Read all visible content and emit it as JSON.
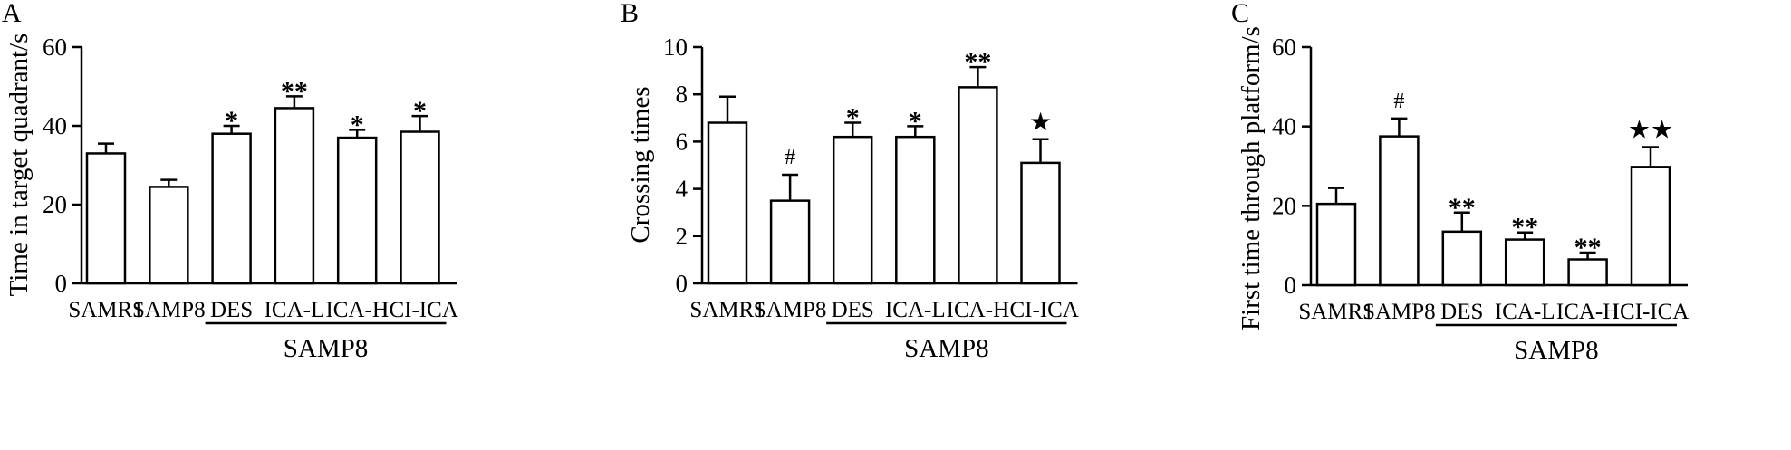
{
  "chart_data": [
    {
      "panel_label": "A",
      "type": "bar",
      "ylabel": "Time in target quadrant/s",
      "ylim": [
        0,
        60
      ],
      "yticks": [
        0,
        20,
        40,
        60
      ],
      "categories": [
        "SAMR1",
        "SAMP8",
        "DES",
        "ICA-L",
        "ICA-H",
        "ICI-ICA"
      ],
      "values": [
        33,
        24.5,
        38,
        44.5,
        37,
        38.5
      ],
      "errors": [
        2.5,
        1.8,
        2,
        3,
        2,
        4
      ],
      "marks": [
        "",
        "",
        "*",
        "**",
        "*",
        "*"
      ],
      "group_label": "SAMP8",
      "group_start": 2,
      "group_end": 5
    },
    {
      "panel_label": "B",
      "type": "bar",
      "ylabel": "Crossing times",
      "ylim": [
        0,
        10
      ],
      "yticks": [
        0,
        2,
        4,
        6,
        8,
        10
      ],
      "categories": [
        "SAMR1",
        "SAMP8",
        "DES",
        "ICA-L",
        "ICA-H",
        "ICI-ICA"
      ],
      "values": [
        6.8,
        3.5,
        6.2,
        6.2,
        8.3,
        5.1
      ],
      "errors": [
        1.1,
        1.1,
        0.6,
        0.45,
        0.85,
        1
      ],
      "marks": [
        "",
        "#",
        "*",
        "*",
        "**",
        "★"
      ],
      "group_label": "SAMP8",
      "group_start": 2,
      "group_end": 5
    },
    {
      "panel_label": "C",
      "type": "bar",
      "ylabel": "First time through platform/s",
      "ylim": [
        0,
        60
      ],
      "yticks": [
        0,
        20,
        40,
        60
      ],
      "categories": [
        "SAMR1",
        "SAMP8",
        "DES",
        "ICA-L",
        "ICA-H",
        "ICI-ICA"
      ],
      "values": [
        20.5,
        37.5,
        13.5,
        11.5,
        6.5,
        29.8
      ],
      "errors": [
        4,
        4.5,
        4.8,
        1.8,
        1.7,
        5
      ],
      "marks": [
        "",
        "#",
        "**",
        "**",
        "**",
        "★★"
      ],
      "group_label": "SAMP8",
      "group_start": 2,
      "group_end": 5
    }
  ]
}
